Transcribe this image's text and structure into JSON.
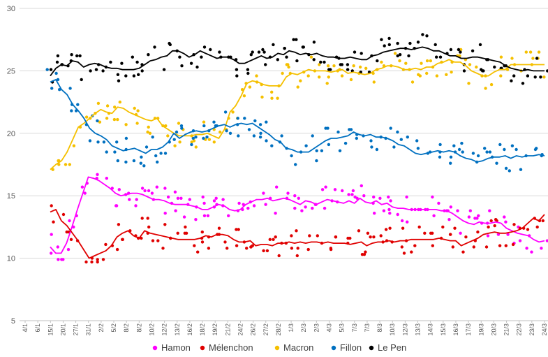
{
  "chart_data": {
    "type": "line",
    "title": "",
    "xlabel": "",
    "ylabel": "",
    "ylim": [
      5,
      30
    ],
    "yticks": [
      "5",
      "10",
      "15",
      "20",
      "25",
      "30"
    ],
    "grid": true,
    "legend_position": "bottom",
    "x_tick_labels": [
      "4/1",
      "6/1",
      "15/1",
      "20/1",
      "27/1",
      "31/1",
      "2/2",
      "5/2",
      "8/2",
      "8/2",
      "10/2",
      "12/2",
      "13/2",
      "16/2",
      "18/2",
      "19/2",
      "21/2",
      "24/2",
      "26/2",
      "27/2",
      "28/2",
      "1/3",
      "2/3",
      "2/3",
      "4/3",
      "5/3",
      "7/3",
      "7/3",
      "8/3",
      "10/3",
      "12/3",
      "13/3",
      "14/3",
      "15/3",
      "16/3",
      "17/3",
      "19/3",
      "20/3",
      "21/3",
      "22/3",
      "23/3",
      "24/3"
    ],
    "series": [
      {
        "name": "Hamon",
        "color": "#ff00ff",
        "trend": [
          10.9,
          10.4,
          10.4,
          11.2,
          12.5,
          13.9,
          15.2,
          16.5,
          16.4,
          16.2,
          15.9,
          15.6,
          15.2,
          15.0,
          15.1,
          15.2,
          15.2,
          15.1,
          14.9,
          14.7,
          14.7,
          14.6,
          14.4,
          14.3,
          14.3,
          14.3,
          14.2,
          14.1,
          13.9,
          13.9,
          14.1,
          14.3,
          14.2,
          13.9,
          13.8,
          13.9,
          14.3,
          14.5,
          14.7,
          14.7,
          14.8,
          14.6,
          14.7,
          14.8,
          14.7,
          14.5,
          14.3,
          14.6,
          14.5,
          14.3,
          14.5,
          14.7,
          14.6,
          14.5,
          14.4,
          14.6,
          14.4,
          14.8,
          14.5,
          14.4,
          14.6,
          14.3,
          14.4,
          14.1,
          14.0,
          14.0,
          13.9,
          13.9,
          13.9,
          13.9,
          13.9,
          13.9,
          13.8,
          13.8,
          13.6,
          13.3,
          13.0,
          12.8,
          12.7,
          12.9,
          12.8,
          12.8,
          12.9,
          12.8,
          12.4,
          12.2,
          12.0,
          11.9,
          11.8,
          11.5,
          11.3,
          11.4
        ]
      },
      {
        "name": "Mélenchon",
        "color": "#e00000",
        "trend": [
          13.7,
          13.9,
          13.0,
          12.6,
          12.0,
          11.4,
          10.7,
          10.0,
          10.2,
          10.4,
          10.6,
          11.0,
          11.7,
          12.0,
          12.2,
          11.8,
          11.6,
          12.2,
          12.0,
          11.9,
          11.8,
          11.7,
          11.6,
          11.5,
          11.5,
          11.5,
          11.5,
          11.6,
          11.8,
          11.7,
          11.9,
          11.9,
          11.8,
          11.5,
          11.3,
          11.3,
          11.4,
          11.0,
          11.1,
          11.1,
          11.0,
          11.2,
          11.2,
          11.3,
          11.2,
          11.3,
          11.2,
          11.3,
          11.3,
          11.2,
          11.3,
          11.2,
          11.2,
          11.2,
          11.1,
          11.2,
          11.3,
          11.0,
          11.2,
          11.3,
          11.3,
          11.4,
          11.3,
          11.4,
          11.4,
          11.5,
          11.5,
          11.5,
          11.5,
          11.5,
          11.6,
          11.5,
          11.4,
          11.4,
          11.0,
          11.2,
          11.4,
          11.6,
          11.9,
          12.0,
          12.1,
          12.0,
          12.0,
          12.1,
          12.2,
          12.4,
          12.8,
          13.2,
          13.0,
          13.5
        ]
      },
      {
        "name": "Macron",
        "color": "#f5c000",
        "trend": [
          17.1,
          17.5,
          17.8,
          18.5,
          19.5,
          20.5,
          20.8,
          21.2,
          21.6,
          21.9,
          21.7,
          21.6,
          22.1,
          22.0,
          21.7,
          21.5,
          21.3,
          21.1,
          21.0,
          21.2,
          20.6,
          20.3,
          20.0,
          19.8,
          19.8,
          19.8,
          19.9,
          19.9,
          20.0,
          19.8,
          19.6,
          20.3,
          21.7,
          22.2,
          23.0,
          24.0,
          24.2,
          24.1,
          23.9,
          23.8,
          23.8,
          23.8,
          24.5,
          24.8,
          24.7,
          24.9,
          25.1,
          25.0,
          25.0,
          25.0,
          24.9,
          25.0,
          25.1,
          24.8,
          24.9,
          24.8,
          24.7,
          24.8,
          25.1,
          25.2,
          25.4,
          25.4,
          25.3,
          25.1,
          25.1,
          25.2,
          25.1,
          25.3,
          25.3,
          25.6,
          25.7,
          25.9,
          25.7,
          25.7,
          25.4,
          25.0,
          24.8,
          24.6,
          24.6,
          24.9,
          25.1,
          25.1,
          25.5,
          25.5,
          25.5,
          25.5,
          25.5,
          25.5,
          25.5
        ]
      },
      {
        "name": "Fillon",
        "color": "#0070c0",
        "trend": [
          24.1,
          24.3,
          23.5,
          23.1,
          22.3,
          21.8,
          21.2,
          20.4,
          20.0,
          19.8,
          19.5,
          19.0,
          18.8,
          18.6,
          18.7,
          18.8,
          18.6,
          18.4,
          18.7,
          18.7,
          18.9,
          19.3,
          20.0,
          19.6,
          19.9,
          20.1,
          20.2,
          20.1,
          20.2,
          20.4,
          20.6,
          20.7,
          20.5,
          20.7,
          20.8,
          20.7,
          20.8,
          20.5,
          20.2,
          19.9,
          19.5,
          19.3,
          18.8,
          18.7,
          18.5,
          18.5,
          18.5,
          18.8,
          19.1,
          19.4,
          19.6,
          19.6,
          19.7,
          19.8,
          20.1,
          19.9,
          19.8,
          19.9,
          19.7,
          19.7,
          19.6,
          19.4,
          19.1,
          19.0,
          18.7,
          18.4,
          18.3,
          18.4,
          18.5,
          18.6,
          18.5,
          18.6,
          18.5,
          18.2,
          18.0,
          17.9,
          17.7,
          17.8,
          18.0,
          18.1,
          18.1,
          18.2,
          18.0,
          18.2,
          18.1,
          18.2,
          18.2,
          18.3,
          18.2
        ]
      },
      {
        "name": "Le Pen",
        "color": "#000000",
        "trend": [
          24.6,
          25.2,
          25.5,
          25.4,
          25.8,
          25.7,
          25.3,
          25.5,
          25.6,
          25.5,
          25.3,
          25.2,
          25.2,
          25.1,
          25.1,
          25.1,
          25.2,
          25.5,
          25.8,
          25.9,
          26.1,
          26.2,
          26.6,
          26.6,
          26.4,
          26.1,
          26.3,
          26.6,
          26.4,
          26.2,
          26.0,
          26.1,
          26.1,
          25.9,
          25.6,
          25.6,
          25.8,
          26.0,
          26.2,
          26.0,
          26.1,
          26.4,
          26.3,
          26.6,
          26.5,
          26.3,
          26.4,
          26.3,
          26.4,
          26.2,
          26.1,
          26.1,
          26.0,
          26.0,
          26.1,
          26.0,
          25.9,
          25.9,
          26.2,
          26.3,
          26.5,
          26.6,
          26.7,
          26.8,
          26.8,
          26.7,
          26.8,
          26.9,
          26.8,
          26.6,
          26.6,
          26.4,
          26.2,
          26.2,
          26.0,
          26.0,
          26.1,
          26.1,
          26.0,
          25.9,
          25.8,
          25.7,
          25.4,
          25.2,
          25.1,
          25.0,
          25.1,
          25.0,
          25.0,
          25.0
        ]
      }
    ]
  }
}
